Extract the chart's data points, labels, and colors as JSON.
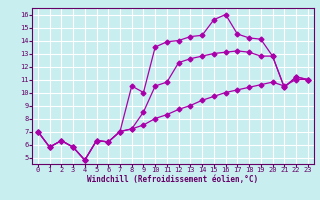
{
  "xlabel": "Windchill (Refroidissement éolien,°C)",
  "background_color": "#c8eef0",
  "line_color": "#aa00aa",
  "grid_color": "#ffffff",
  "xlim": [
    -0.5,
    23.5
  ],
  "ylim": [
    4.5,
    16.5
  ],
  "xticks": [
    0,
    1,
    2,
    3,
    4,
    5,
    6,
    7,
    8,
    9,
    10,
    11,
    12,
    13,
    14,
    15,
    16,
    17,
    18,
    19,
    20,
    21,
    22,
    23
  ],
  "yticks": [
    5,
    6,
    7,
    8,
    9,
    10,
    11,
    12,
    13,
    14,
    15,
    16
  ],
  "y_top": [
    7.0,
    5.8,
    6.3,
    5.8,
    4.8,
    6.3,
    6.2,
    7.0,
    10.5,
    10.0,
    13.5,
    13.9,
    14.0,
    14.3,
    14.4,
    15.6,
    16.0,
    14.5,
    14.2,
    14.1,
    12.8,
    10.4,
    11.2,
    11.0
  ],
  "y_mid": [
    7.0,
    5.8,
    6.3,
    5.8,
    4.8,
    6.3,
    6.2,
    7.0,
    7.2,
    8.5,
    10.5,
    10.8,
    12.3,
    12.6,
    12.8,
    13.0,
    13.1,
    13.2,
    13.1,
    12.8,
    12.8,
    10.4,
    11.2,
    11.0
  ],
  "y_bot": [
    7.0,
    5.8,
    6.3,
    5.8,
    4.8,
    6.3,
    6.2,
    7.0,
    7.2,
    7.5,
    8.0,
    8.3,
    8.7,
    9.0,
    9.4,
    9.7,
    10.0,
    10.2,
    10.4,
    10.6,
    10.8,
    10.5,
    11.0,
    11.0
  ],
  "marker_size": 2.5,
  "linewidth": 0.9,
  "tick_fontsize": 5,
  "xlabel_fontsize": 5.5
}
